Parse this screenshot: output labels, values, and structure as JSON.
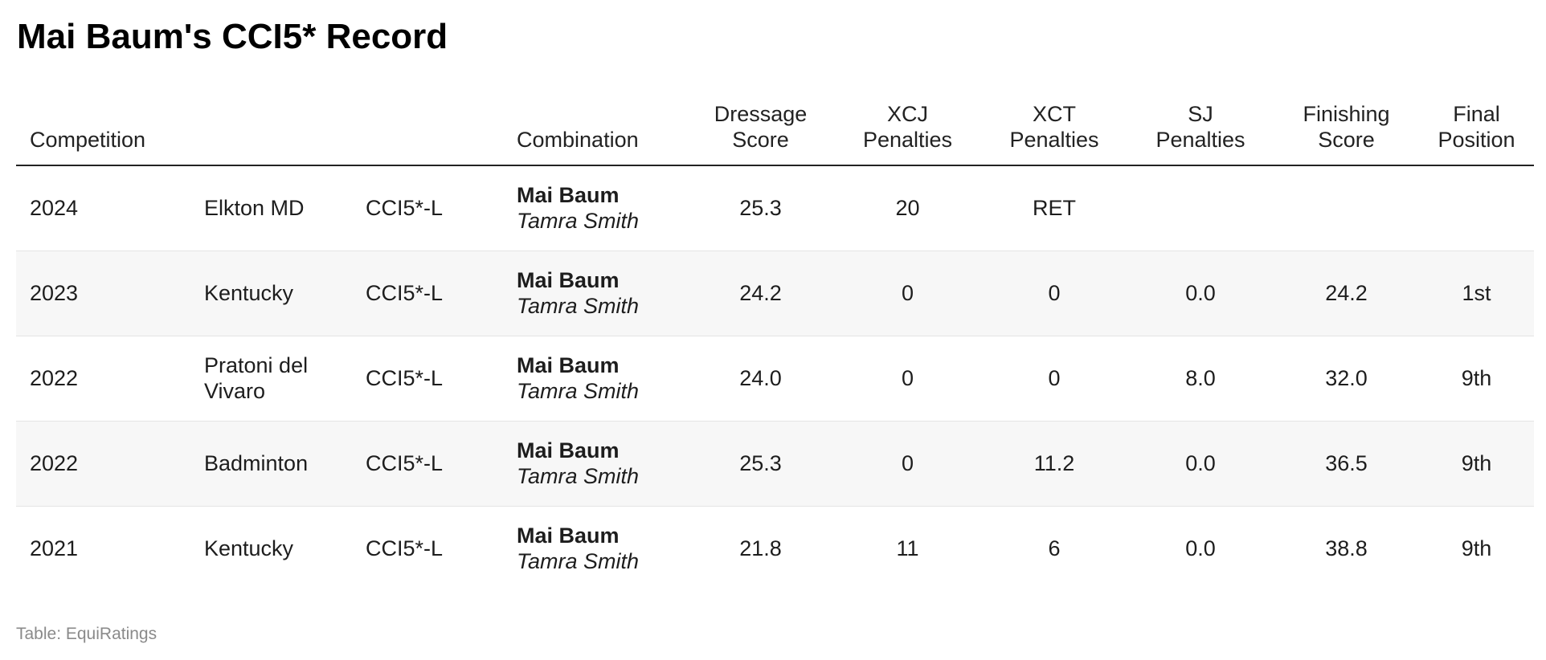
{
  "title": "Mai Baum's CCI5* Record",
  "source": "Table: EquiRatings",
  "columns": {
    "competition": "Competition",
    "combination": "Combination",
    "dressage": [
      "Dressage",
      "Score"
    ],
    "xcj": [
      "XCJ",
      "Penalties"
    ],
    "xct": [
      "XCT",
      "Penalties"
    ],
    "sj": [
      "SJ",
      "Penalties"
    ],
    "finishing": [
      "Finishing",
      "Score"
    ],
    "position": [
      "Final",
      "Position"
    ]
  },
  "chart_data": {
    "type": "table",
    "title": "Mai Baum's CCI5* Record",
    "columns": [
      "Competition",
      "",
      "",
      "Combination",
      "Dressage Score",
      "XCJ Penalties",
      "XCT Penalties",
      "SJ Penalties",
      "Finishing Score",
      "Final Position"
    ],
    "rows": [
      {
        "year": "2024",
        "venue": "Elkton MD",
        "level": "CCI5*-L",
        "horse": "Mai Baum",
        "rider": "Tamra Smith",
        "dressage": "25.3",
        "xcj": "20",
        "xct": "RET",
        "sj": "",
        "finishing": "",
        "position": ""
      },
      {
        "year": "2023",
        "venue": "Kentucky",
        "level": "CCI5*-L",
        "horse": "Mai Baum",
        "rider": "Tamra Smith",
        "dressage": "24.2",
        "xcj": "0",
        "xct": "0",
        "sj": "0.0",
        "finishing": "24.2",
        "position": "1st"
      },
      {
        "year": "2022",
        "venue": "Pratoni del Vivaro",
        "level": "CCI5*-L",
        "horse": "Mai Baum",
        "rider": "Tamra Smith",
        "dressage": "24.0",
        "xcj": "0",
        "xct": "0",
        "sj": "8.0",
        "finishing": "32.0",
        "position": "9th"
      },
      {
        "year": "2022",
        "venue": "Badminton",
        "level": "CCI5*-L",
        "horse": "Mai Baum",
        "rider": "Tamra Smith",
        "dressage": "25.3",
        "xcj": "0",
        "xct": "11.2",
        "sj": "0.0",
        "finishing": "36.5",
        "position": "9th"
      },
      {
        "year": "2021",
        "venue": "Kentucky",
        "level": "CCI5*-L",
        "horse": "Mai Baum",
        "rider": "Tamra Smith",
        "dressage": "21.8",
        "xcj": "11",
        "xct": "6",
        "sj": "0.0",
        "finishing": "38.8",
        "position": "9th"
      }
    ]
  }
}
